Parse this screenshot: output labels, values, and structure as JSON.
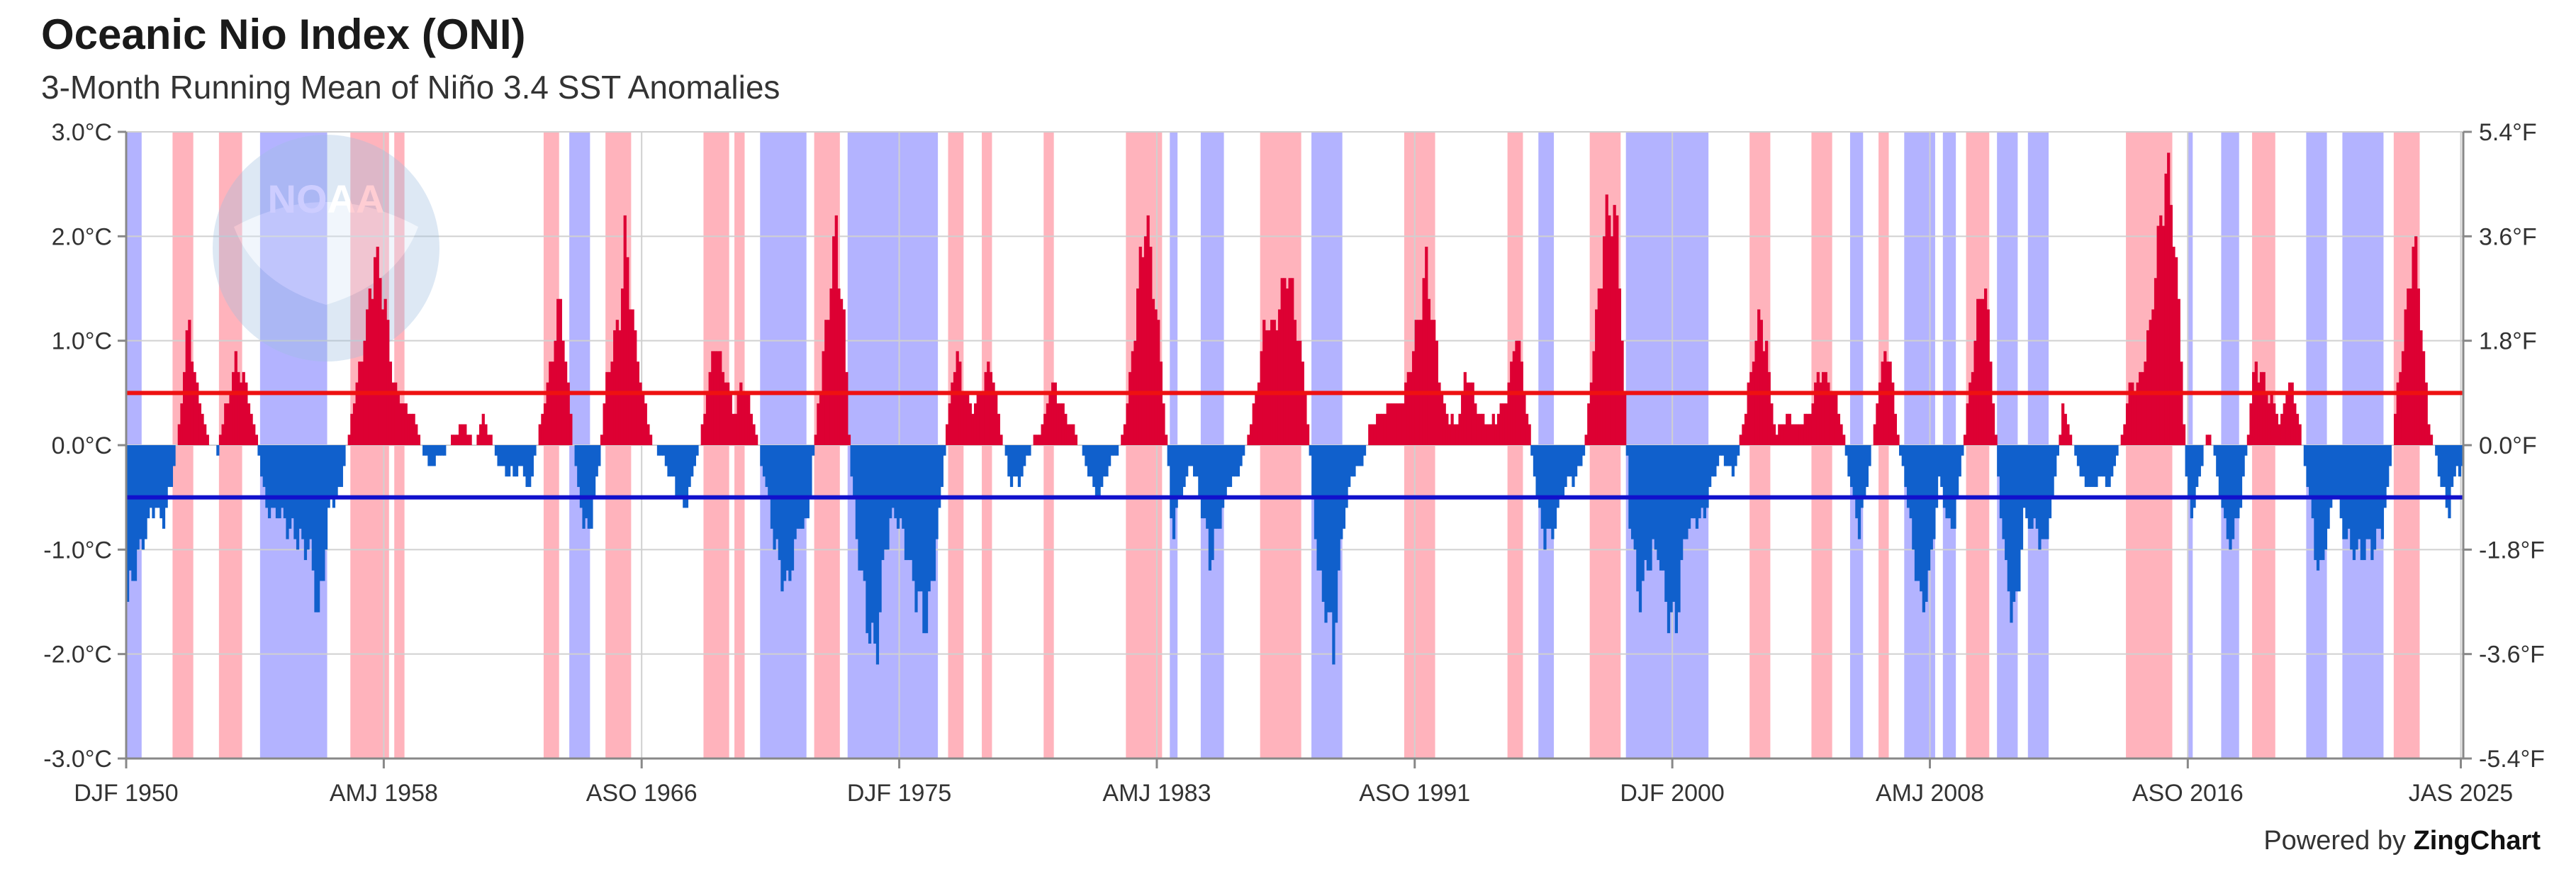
{
  "chart_data": {
    "type": "bar",
    "title": "Oceanic Nio Index (ONI)",
    "subtitle": "3-Month Running Mean of Niño 3.4 SST Anomalies",
    "x_start_year": 1950.0,
    "x_end_year": 2025.58,
    "x_tick_labels": [
      "DJF 1950",
      "AMJ 1958",
      "ASO 1966",
      "DJF 1975",
      "AMJ 1983",
      "ASO 1991",
      "DJF 2000",
      "AMJ 2008",
      "ASO 2016",
      "JAS 2025"
    ],
    "x_tick_years": [
      1950.0,
      1958.33,
      1966.67,
      1975.0,
      1983.33,
      1991.67,
      2000.0,
      2008.33,
      2016.67,
      2025.5
    ],
    "ylim": [
      -3.0,
      3.0
    ],
    "y_ticks_c": [
      "3.0°C",
      "2.0°C",
      "1.0°C",
      "0.0°C",
      "-1.0°C",
      "-2.0°C",
      "-3.0°C"
    ],
    "y_ticks_f": [
      "5.4°F",
      "3.6°F",
      "1.8°F",
      "0.0°F",
      "-1.8°F",
      "-3.6°F",
      "-5.4°F"
    ],
    "thresholds": {
      "el_nino": 0.5,
      "la_nina": -0.5
    },
    "colors": {
      "positive_bar": "#dd0033",
      "negative_bar": "#1060cc",
      "el_nino_band": "#ffb3bc",
      "la_nina_band": "#b3b3ff",
      "el_nino_line": "#ee1111",
      "la_nina_line": "#1111cc"
    },
    "la_nina_periods": [
      [
        1950.0,
        1950.5
      ],
      [
        1954.33,
        1956.5
      ],
      [
        1964.33,
        1965.0
      ],
      [
        1970.5,
        1972.0
      ],
      [
        1973.33,
        1976.25
      ],
      [
        1983.75,
        1984.0
      ],
      [
        1984.75,
        1985.5
      ],
      [
        1988.33,
        1989.33
      ],
      [
        1995.67,
        1996.17
      ],
      [
        1998.5,
        2001.17
      ],
      [
        2005.75,
        2006.17
      ],
      [
        2007.5,
        2008.5
      ],
      [
        2008.75,
        2009.17
      ],
      [
        2010.5,
        2011.17
      ],
      [
        2011.5,
        2012.17
      ],
      [
        2016.67,
        2016.83
      ],
      [
        2017.75,
        2018.33
      ],
      [
        2020.5,
        2021.17
      ],
      [
        2021.67,
        2023.0
      ]
    ],
    "el_nino_periods": [
      [
        1951.5,
        1952.17
      ],
      [
        1953.0,
        1953.75
      ],
      [
        1957.25,
        1958.5
      ],
      [
        1958.67,
        1959.0
      ],
      [
        1963.5,
        1964.0
      ],
      [
        1965.5,
        1966.33
      ],
      [
        1968.67,
        1969.5
      ],
      [
        1969.67,
        1970.0
      ],
      [
        1972.25,
        1973.08
      ],
      [
        1976.58,
        1977.08
      ],
      [
        1977.67,
        1978.0
      ],
      [
        1979.67,
        1980.0
      ],
      [
        1982.33,
        1983.5
      ],
      [
        1986.67,
        1988.0
      ],
      [
        1991.33,
        1992.33
      ],
      [
        1994.67,
        1995.17
      ],
      [
        1997.33,
        1998.33
      ],
      [
        2002.5,
        2003.17
      ],
      [
        2004.5,
        2005.17
      ],
      [
        2006.67,
        2007.0
      ],
      [
        2009.5,
        2010.25
      ],
      [
        2014.67,
        2016.17
      ],
      [
        2018.75,
        2019.5
      ],
      [
        2023.33,
        2024.17
      ]
    ],
    "anchors": [
      [
        1950.0,
        -1.5
      ],
      [
        1950.4,
        -1.0
      ],
      [
        1950.8,
        -0.6
      ],
      [
        1951.2,
        -0.7
      ],
      [
        1951.5,
        -0.2
      ],
      [
        1951.7,
        0.3
      ],
      [
        1952.0,
        1.2
      ],
      [
        1952.2,
        0.6
      ],
      [
        1952.6,
        0.1
      ],
      [
        1952.9,
        -0.1
      ],
      [
        1953.2,
        0.4
      ],
      [
        1953.5,
        0.8
      ],
      [
        1953.9,
        0.5
      ],
      [
        1954.2,
        0.0
      ],
      [
        1954.5,
        -0.6
      ],
      [
        1955.0,
        -0.7
      ],
      [
        1955.5,
        -0.9
      ],
      [
        1955.9,
        -1.0
      ],
      [
        1956.2,
        -1.7
      ],
      [
        1956.5,
        -0.6
      ],
      [
        1956.9,
        -0.4
      ],
      [
        1957.3,
        0.4
      ],
      [
        1957.7,
        1.1
      ],
      [
        1958.0,
        1.8
      ],
      [
        1958.3,
        1.4
      ],
      [
        1958.6,
        0.6
      ],
      [
        1958.9,
        0.4
      ],
      [
        1959.2,
        0.3
      ],
      [
        1959.5,
        0.0
      ],
      [
        1959.8,
        -0.2
      ],
      [
        1960.2,
        -0.1
      ],
      [
        1960.5,
        0.1
      ],
      [
        1960.9,
        0.2
      ],
      [
        1961.2,
        0.0
      ],
      [
        1961.5,
        0.3
      ],
      [
        1961.9,
        -0.1
      ],
      [
        1962.3,
        -0.3
      ],
      [
        1962.7,
        -0.2
      ],
      [
        1963.0,
        -0.4
      ],
      [
        1963.3,
        0.1
      ],
      [
        1963.7,
        0.8
      ],
      [
        1964.0,
        1.4
      ],
      [
        1964.3,
        0.4
      ],
      [
        1964.6,
        -0.5
      ],
      [
        1964.9,
        -0.9
      ],
      [
        1965.2,
        -0.3
      ],
      [
        1965.5,
        0.6
      ],
      [
        1965.9,
        1.2
      ],
      [
        1966.1,
        2.0
      ],
      [
        1966.4,
        1.0
      ],
      [
        1966.7,
        0.4
      ],
      [
        1967.0,
        0.0
      ],
      [
        1967.4,
        -0.2
      ],
      [
        1967.7,
        -0.4
      ],
      [
        1968.0,
        -0.6
      ],
      [
        1968.3,
        -0.3
      ],
      [
        1968.6,
        0.2
      ],
      [
        1969.0,
        1.0
      ],
      [
        1969.3,
        0.7
      ],
      [
        1969.6,
        0.3
      ],
      [
        1969.9,
        0.6
      ],
      [
        1970.2,
        0.3
      ],
      [
        1970.6,
        -0.3
      ],
      [
        1970.9,
        -0.9
      ],
      [
        1971.3,
        -1.4
      ],
      [
        1971.7,
        -0.8
      ],
      [
        1972.0,
        -0.7
      ],
      [
        1972.3,
        0.3
      ],
      [
        1972.6,
        1.1
      ],
      [
        1972.9,
        2.1
      ],
      [
        1973.2,
        1.0
      ],
      [
        1973.4,
        -0.3
      ],
      [
        1973.7,
        -1.2
      ],
      [
        1974.0,
        -1.8
      ],
      [
        1974.2,
        -2.0
      ],
      [
        1974.5,
        -1.0
      ],
      [
        1974.8,
        -0.6
      ],
      [
        1975.1,
        -0.9
      ],
      [
        1975.4,
        -1.3
      ],
      [
        1975.8,
        -1.7
      ],
      [
        1976.0,
        -1.4
      ],
      [
        1976.3,
        -0.5
      ],
      [
        1976.5,
        0.2
      ],
      [
        1976.8,
        0.9
      ],
      [
        1977.0,
        0.6
      ],
      [
        1977.3,
        0.3
      ],
      [
        1977.6,
        0.5
      ],
      [
        1977.9,
        0.8
      ],
      [
        1978.2,
        0.2
      ],
      [
        1978.5,
        -0.3
      ],
      [
        1978.8,
        -0.4
      ],
      [
        1979.1,
        -0.1
      ],
      [
        1979.4,
        0.1
      ],
      [
        1979.7,
        0.3
      ],
      [
        1979.9,
        0.6
      ],
      [
        1980.2,
        0.4
      ],
      [
        1980.5,
        0.2
      ],
      [
        1980.8,
        0.0
      ],
      [
        1981.1,
        -0.3
      ],
      [
        1981.4,
        -0.5
      ],
      [
        1981.7,
        -0.2
      ],
      [
        1982.0,
        -0.1
      ],
      [
        1982.3,
        0.3
      ],
      [
        1982.6,
        1.2
      ],
      [
        1982.9,
        2.2
      ],
      [
        1983.2,
        1.5
      ],
      [
        1983.5,
        0.5
      ],
      [
        1983.8,
        -0.9
      ],
      [
        1984.1,
        -0.4
      ],
      [
        1984.4,
        -0.2
      ],
      [
        1984.7,
        -0.5
      ],
      [
        1985.0,
        -1.1
      ],
      [
        1985.3,
        -0.8
      ],
      [
        1985.6,
        -0.4
      ],
      [
        1986.0,
        -0.2
      ],
      [
        1986.4,
        0.3
      ],
      [
        1986.8,
        1.2
      ],
      [
        1987.1,
        1.1
      ],
      [
        1987.5,
        1.7
      ],
      [
        1987.8,
        1.2
      ],
      [
        1988.1,
        0.5
      ],
      [
        1988.5,
        -1.2
      ],
      [
        1988.8,
        -1.6
      ],
      [
        1989.0,
        -1.9
      ],
      [
        1989.3,
        -0.8
      ],
      [
        1989.6,
        -0.3
      ],
      [
        1989.9,
        -0.2
      ],
      [
        1990.2,
        0.2
      ],
      [
        1990.6,
        0.3
      ],
      [
        1990.9,
        0.4
      ],
      [
        1991.2,
        0.4
      ],
      [
        1991.5,
        0.8
      ],
      [
        1991.8,
        1.3
      ],
      [
        1992.0,
        1.7
      ],
      [
        1992.3,
        1.0
      ],
      [
        1992.6,
        0.3
      ],
      [
        1993.0,
        0.2
      ],
      [
        1993.3,
        0.7
      ],
      [
        1993.6,
        0.4
      ],
      [
        1994.0,
        0.2
      ],
      [
        1994.4,
        0.3
      ],
      [
        1994.7,
        0.6
      ],
      [
        1994.9,
        1.1
      ],
      [
        1995.2,
        0.5
      ],
      [
        1995.5,
        -0.3
      ],
      [
        1995.8,
        -0.9
      ],
      [
        1996.1,
        -0.8
      ],
      [
        1996.5,
        -0.4
      ],
      [
        1996.8,
        -0.3
      ],
      [
        1997.1,
        -0.1
      ],
      [
        1997.4,
        0.9
      ],
      [
        1997.7,
        1.8
      ],
      [
        1997.9,
        2.4
      ],
      [
        1998.2,
        2.0
      ],
      [
        1998.4,
        0.6
      ],
      [
        1998.6,
        -0.8
      ],
      [
        1998.9,
        -1.5
      ],
      [
        1999.2,
        -1.1
      ],
      [
        1999.5,
        -1.0
      ],
      [
        1999.8,
        -1.6
      ],
      [
        2000.1,
        -1.7
      ],
      [
        2000.4,
        -0.8
      ],
      [
        2000.8,
        -0.7
      ],
      [
        2001.0,
        -0.7
      ],
      [
        2001.3,
        -0.3
      ],
      [
        2001.6,
        -0.1
      ],
      [
        2001.9,
        -0.3
      ],
      [
        2002.2,
        0.1
      ],
      [
        2002.5,
        0.7
      ],
      [
        2002.8,
        1.3
      ],
      [
        2003.0,
        0.9
      ],
      [
        2003.3,
        0.1
      ],
      [
        2003.7,
        0.3
      ],
      [
        2004.0,
        0.2
      ],
      [
        2004.4,
        0.3
      ],
      [
        2004.7,
        0.7
      ],
      [
        2005.0,
        0.6
      ],
      [
        2005.3,
        0.4
      ],
      [
        2005.7,
        -0.3
      ],
      [
        2006.0,
        -0.8
      ],
      [
        2006.3,
        -0.3
      ],
      [
        2006.6,
        0.5
      ],
      [
        2006.9,
        1.0
      ],
      [
        2007.2,
        0.2
      ],
      [
        2007.5,
        -0.4
      ],
      [
        2007.8,
        -1.1
      ],
      [
        2008.0,
        -1.6
      ],
      [
        2008.3,
        -1.2
      ],
      [
        2008.6,
        -0.3
      ],
      [
        2008.9,
        -0.8
      ],
      [
        2009.1,
        -0.7
      ],
      [
        2009.4,
        0.1
      ],
      [
        2009.7,
        0.9
      ],
      [
        2010.0,
        1.6
      ],
      [
        2010.2,
        1.1
      ],
      [
        2010.5,
        -0.3
      ],
      [
        2010.8,
        -1.4
      ],
      [
        2011.1,
        -1.6
      ],
      [
        2011.3,
        -0.7
      ],
      [
        2011.7,
        -0.8
      ],
      [
        2012.0,
        -1.0
      ],
      [
        2012.3,
        -0.4
      ],
      [
        2012.6,
        0.4
      ],
      [
        2012.9,
        0.0
      ],
      [
        2013.2,
        -0.3
      ],
      [
        2013.5,
        -0.4
      ],
      [
        2013.8,
        -0.3
      ],
      [
        2014.1,
        -0.4
      ],
      [
        2014.5,
        0.1
      ],
      [
        2014.8,
        0.6
      ],
      [
        2015.1,
        0.6
      ],
      [
        2015.4,
        1.1
      ],
      [
        2015.7,
        2.0
      ],
      [
        2015.9,
        2.6
      ],
      [
        2016.1,
        2.4
      ],
      [
        2016.4,
        1.0
      ],
      [
        2016.6,
        -0.5
      ],
      [
        2016.8,
        -0.7
      ],
      [
        2017.0,
        -0.3
      ],
      [
        2017.3,
        0.2
      ],
      [
        2017.6,
        -0.3
      ],
      [
        2017.9,
        -0.9
      ],
      [
        2018.1,
        -0.9
      ],
      [
        2018.4,
        -0.4
      ],
      [
        2018.6,
        0.2
      ],
      [
        2018.8,
        0.8
      ],
      [
        2019.1,
        0.6
      ],
      [
        2019.4,
        0.4
      ],
      [
        2019.6,
        0.2
      ],
      [
        2019.9,
        0.6
      ],
      [
        2020.1,
        0.4
      ],
      [
        2020.4,
        -0.1
      ],
      [
        2020.6,
        -0.6
      ],
      [
        2020.9,
        -1.3
      ],
      [
        2021.1,
        -0.9
      ],
      [
        2021.4,
        -0.4
      ],
      [
        2021.7,
        -0.9
      ],
      [
        2022.0,
        -1.0
      ],
      [
        2022.3,
        -1.0
      ],
      [
        2022.6,
        -1.0
      ],
      [
        2022.9,
        -0.8
      ],
      [
        2023.1,
        -0.4
      ],
      [
        2023.4,
        0.5
      ],
      [
        2023.7,
        1.3
      ],
      [
        2023.95,
        2.0
      ],
      [
        2024.2,
        1.1
      ],
      [
        2024.4,
        0.2
      ],
      [
        2024.7,
        -0.2
      ],
      [
        2024.9,
        -0.5
      ],
      [
        2025.1,
        -0.6
      ],
      [
        2025.3,
        -0.2
      ],
      [
        2025.58,
        -0.3
      ]
    ]
  },
  "watermark": {
    "text": "NOAA"
  },
  "credit": {
    "prefix": "Powered by",
    "brand": "ZingChart"
  }
}
